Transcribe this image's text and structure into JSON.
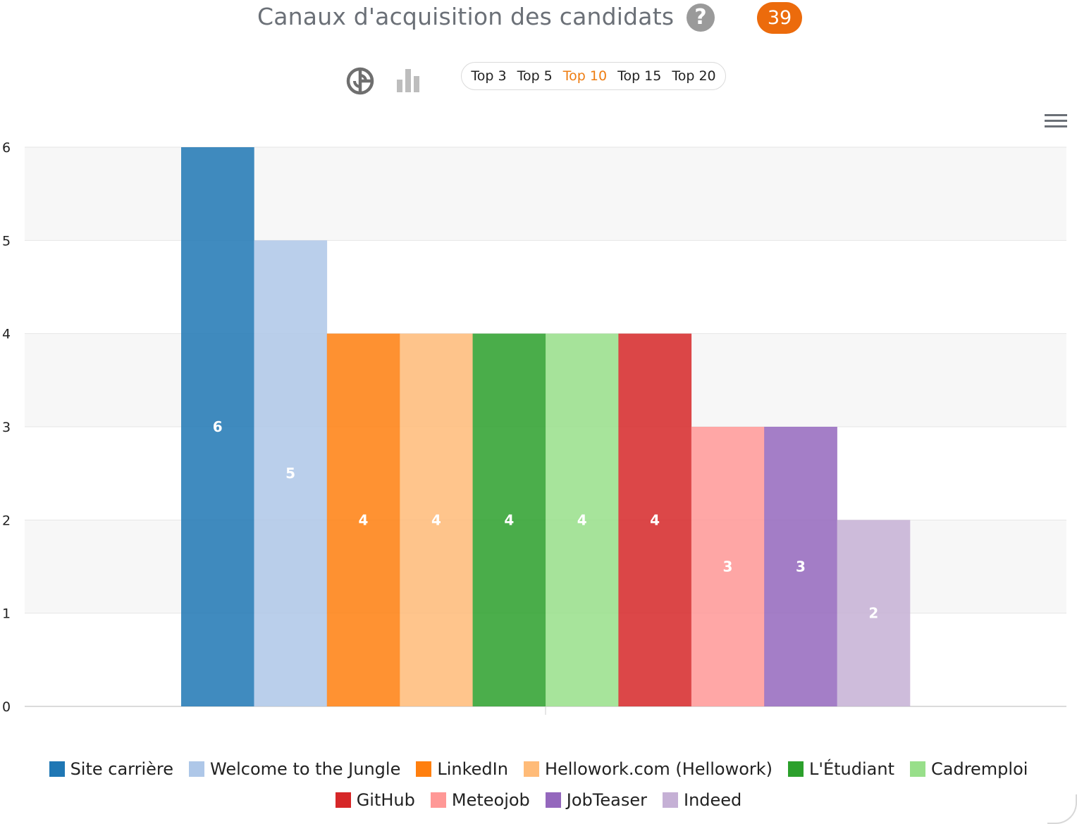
{
  "header": {
    "title": "Canaux d'acquisition des candidats",
    "help_icon": "question-circle-icon",
    "help_glyph": "?",
    "count": "39"
  },
  "toolbar": {
    "chart_type_icons": [
      "pie-chart-icon",
      "bar-chart-icon"
    ],
    "top_options": [
      {
        "label": "Top 3",
        "active": false
      },
      {
        "label": "Top 5",
        "active": false
      },
      {
        "label": "Top 10",
        "active": true
      },
      {
        "label": "Top 15",
        "active": false
      },
      {
        "label": "Top 20",
        "active": false
      }
    ],
    "menu_icon": "hamburger-menu-icon"
  },
  "colors": {
    "accent": "#ec6b0c",
    "active_option": "#ee7d12"
  },
  "chart_data": {
    "type": "bar",
    "categories": [
      "Site carrière",
      "Welcome to the Jungle",
      "LinkedIn",
      "Hellowork.com (Hellowork)",
      "L'Étudiant",
      "Cadremploi",
      "GitHub",
      "Meteojob",
      "JobTeaser",
      "Indeed"
    ],
    "values": [
      6,
      5,
      4,
      4,
      4,
      4,
      4,
      3,
      3,
      2
    ],
    "value_labels": [
      "6",
      "5",
      "4",
      "4",
      "4",
      "4",
      "4",
      "3",
      "3",
      "2"
    ],
    "colors": [
      "#1f77b4",
      "#aec7e8",
      "#ff7f0e",
      "#ffbb78",
      "#2ca02c",
      "#98df8a",
      "#d62728",
      "#ff9896",
      "#9467bd",
      "#c5b0d5"
    ],
    "ylim": [
      0,
      6
    ],
    "yticks": [
      0,
      1,
      2,
      3,
      4,
      5,
      6
    ],
    "ytick_labels": [
      "0",
      "1",
      "2",
      "3",
      "4",
      "5",
      "6"
    ],
    "grid": true,
    "legend_position": "bottom",
    "title": "",
    "xlabel": "",
    "ylabel": ""
  }
}
